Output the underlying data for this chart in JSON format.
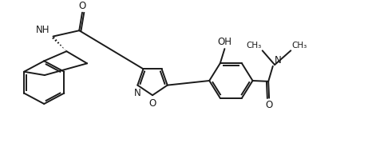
{
  "background_color": "#ffffff",
  "line_color": "#1a1a1a",
  "line_width": 1.4,
  "font_size": 8.5,
  "figsize": [
    4.71,
    1.89
  ],
  "dpi": 100,
  "xlim": [
    0,
    10
  ],
  "ylim": [
    0,
    4
  ]
}
